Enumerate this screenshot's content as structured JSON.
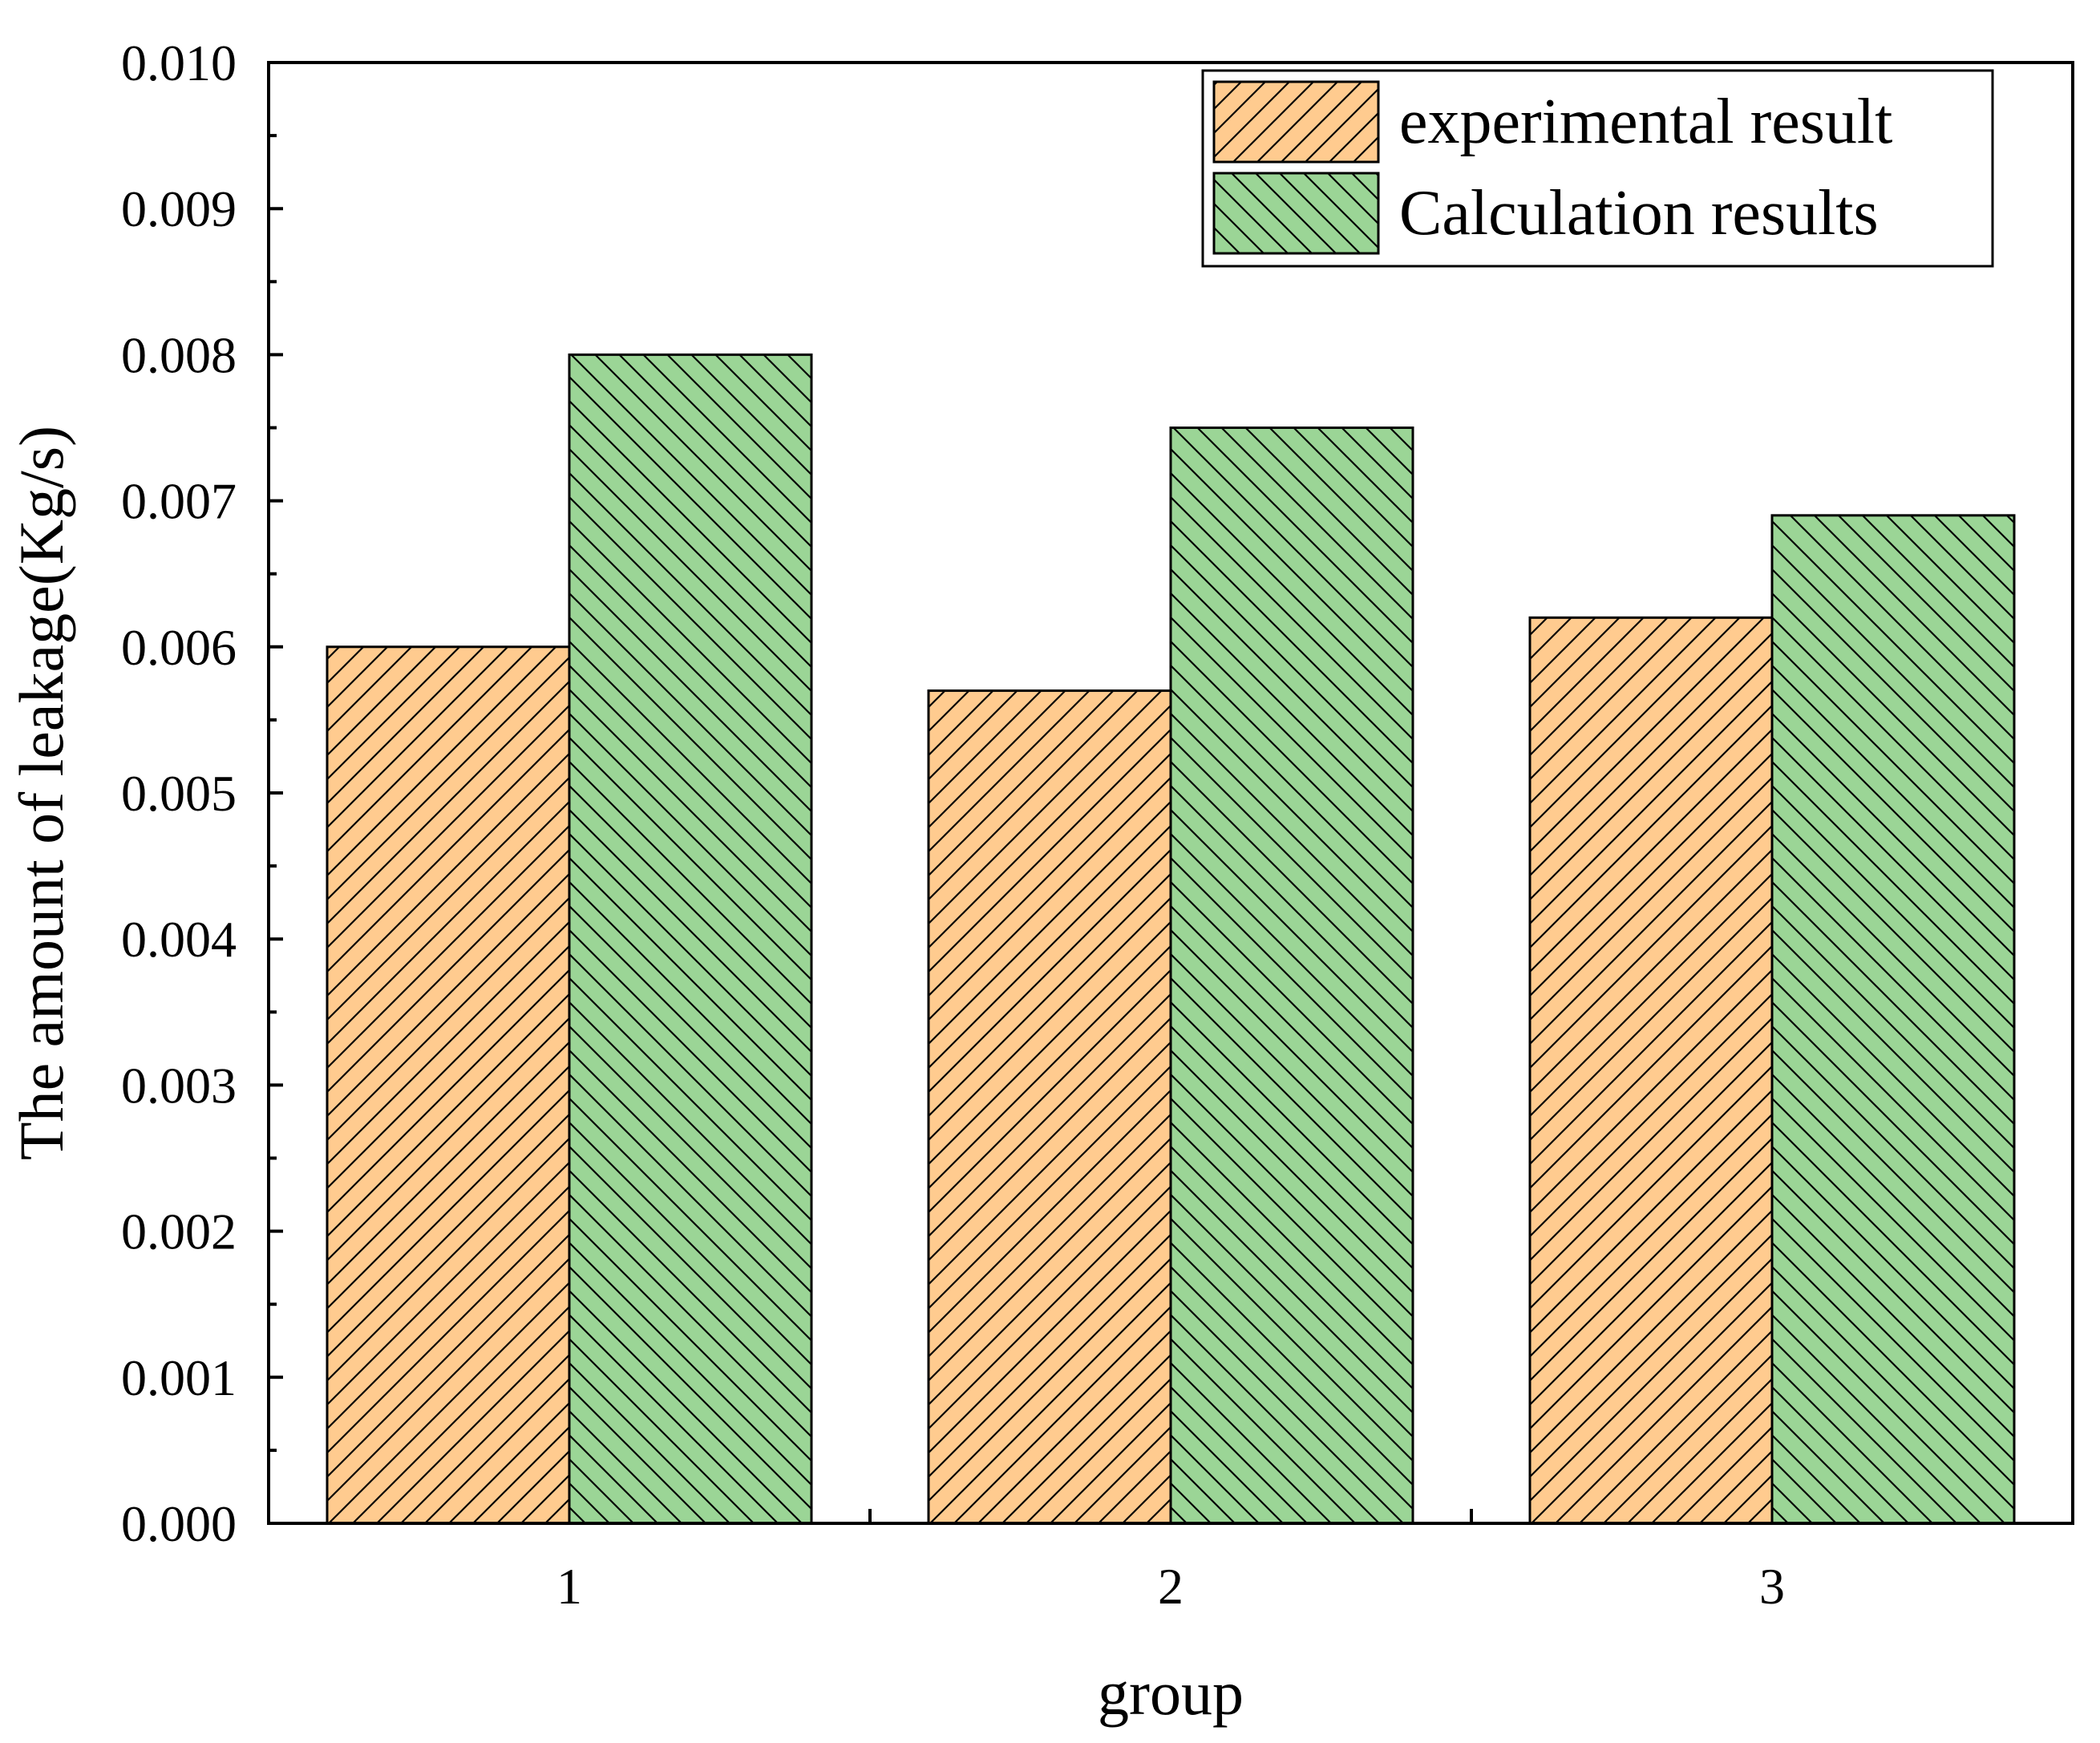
{
  "chart_data": {
    "type": "bar",
    "title": "",
    "xlabel": "group",
    "ylabel": "The amount of leakage(Kg/s)",
    "categories": [
      "1",
      "2",
      "3"
    ],
    "ylim": [
      0,
      0.01
    ],
    "yticks": [
      "0.000",
      "0.001",
      "0.002",
      "0.003",
      "0.004",
      "0.005",
      "0.006",
      "0.007",
      "0.008",
      "0.009",
      "0.010"
    ],
    "grid": false,
    "legend_position": "top-right",
    "series": [
      {
        "name": "experimental result",
        "values": [
          0.006,
          0.0057,
          0.0062
        ],
        "color": "#ffcb8f",
        "hatch": "forward-diagonal"
      },
      {
        "name": "Calculation results",
        "values": [
          0.008,
          0.0075,
          0.0069
        ],
        "color": "#9bd596",
        "hatch": "back-diagonal"
      }
    ]
  }
}
